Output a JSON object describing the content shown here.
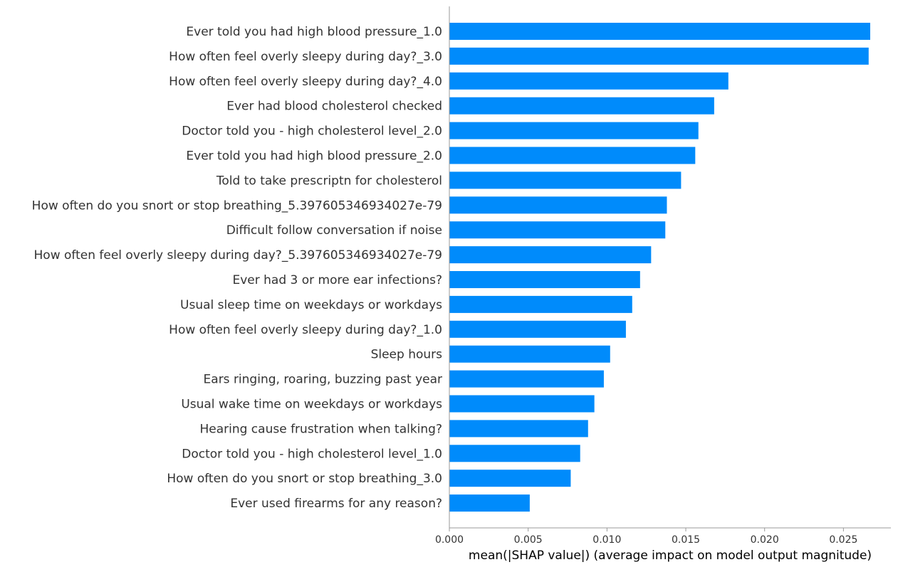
{
  "chart_data": {
    "type": "bar",
    "orientation": "horizontal",
    "title": "",
    "xlabel": "mean(|SHAP value|) (average impact on model output magnitude)",
    "ylabel": "",
    "xlim": [
      0,
      0.028
    ],
    "grid": false,
    "bar_color": "#008bfb",
    "xticks": [
      "0.000",
      "0.005",
      "0.010",
      "0.015",
      "0.020",
      "0.025"
    ],
    "xtick_values": [
      0,
      0.005,
      0.01,
      0.015,
      0.02,
      0.025
    ],
    "categories": [
      "Ever told you had high blood pressure_1.0",
      "How often feel overly sleepy during day?_3.0",
      "How often feel overly sleepy during day?_4.0",
      "Ever had blood cholesterol checked",
      "Doctor told you - high cholesterol level_2.0",
      "Ever told you had high blood pressure_2.0",
      "Told to take prescriptn for cholesterol",
      "How often do you snort or stop breathing_5.397605346934027e-79",
      "Difficult follow conversation if noise",
      "How often feel overly sleepy during day?_5.397605346934027e-79",
      "Ever had 3 or more ear infections?",
      "Usual sleep time on weekdays or workdays",
      "How often feel overly sleepy during day?_1.0",
      "Sleep hours",
      "Ears ringing, roaring, buzzing past year",
      "Usual wake time on weekdays or workdays",
      "Hearing cause frustration when talking?",
      "Doctor told you - high cholesterol level_1.0",
      "How often do you snort or stop breathing_3.0",
      "Ever used firearms for any reason?"
    ],
    "values": [
      0.0267,
      0.0266,
      0.0177,
      0.0168,
      0.0158,
      0.0156,
      0.0147,
      0.0138,
      0.0137,
      0.0128,
      0.0121,
      0.0116,
      0.0112,
      0.0102,
      0.0098,
      0.0092,
      0.0088,
      0.0083,
      0.0077,
      0.0051
    ]
  }
}
